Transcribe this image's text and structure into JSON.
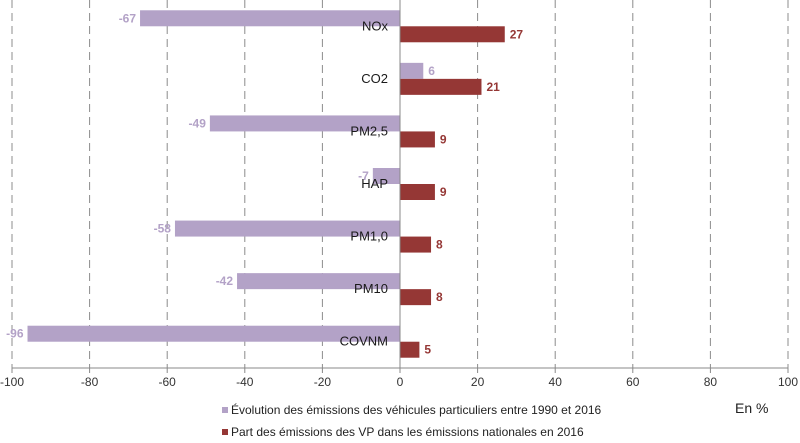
{
  "chart_data": {
    "type": "bar",
    "orientation": "horizontal",
    "categories": [
      "NOx",
      "CO2",
      "PM2,5",
      "HAP",
      "PM1,0",
      "PM10",
      "COVNM"
    ],
    "series": [
      {
        "name": "Évolution des émissions des véhicules particuliers entre 1990 et 2016",
        "color": "#B3A2C7",
        "values": [
          -67,
          6,
          -49,
          -7,
          -58,
          -42,
          -96
        ]
      },
      {
        "name": "Part des émissions des VP dans les émissions nationales en 2016",
        "color": "#953735",
        "values": [
          27,
          21,
          9,
          9,
          8,
          8,
          5
        ]
      }
    ],
    "xlim": [
      -100,
      100
    ],
    "xticks": [
      -100,
      -80,
      -60,
      -40,
      -20,
      0,
      20,
      40,
      60,
      80,
      100
    ],
    "grid": "vertical dashed",
    "xlabel": "En %",
    "legend_position": "bottom"
  }
}
